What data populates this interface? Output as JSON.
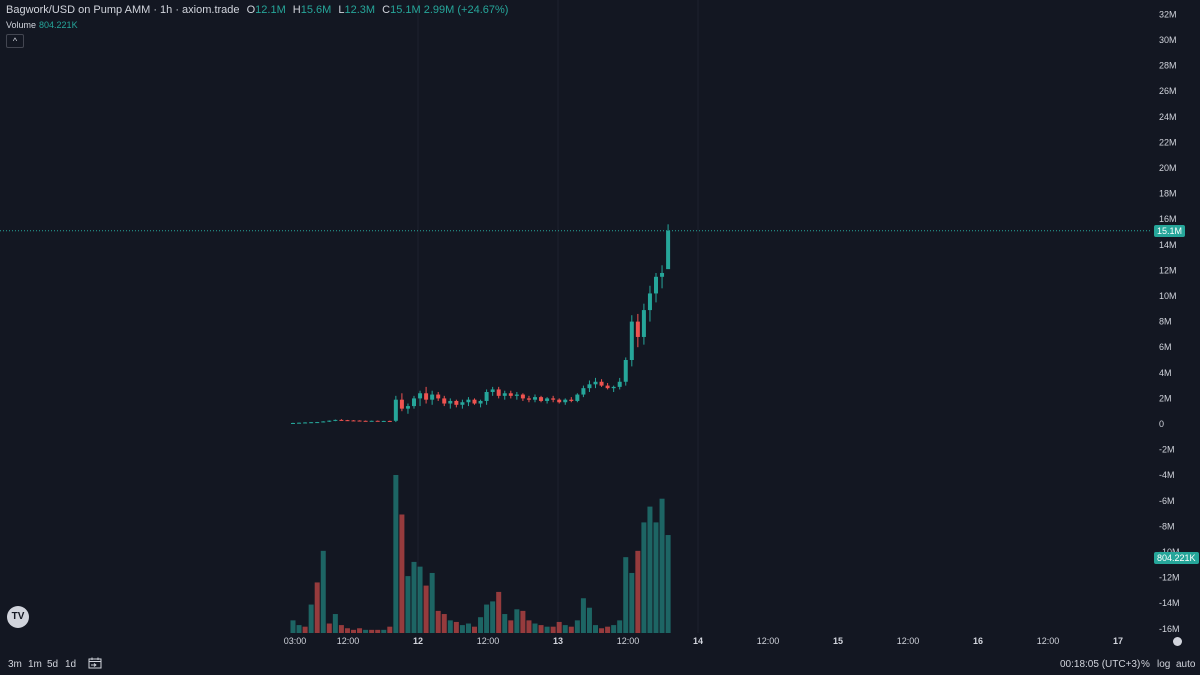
{
  "legend": {
    "symbol": "Bagwork/USD on Pump AMM · 1h · axiom.trade",
    "o_label": "O",
    "o_value": "12.1M",
    "h_label": "H",
    "h_value": "15.6M",
    "l_label": "L",
    "l_value": "12.3M",
    "c_label": "C",
    "c_value": "15.1M",
    "change": "2.99M (+24.67%)"
  },
  "volume_legend": {
    "label": "Volume",
    "value": "804.221K"
  },
  "collapse_glyph": "^",
  "logo_text": "TV",
  "price_badge": "15.1M",
  "volume_badge": "804.221K",
  "bottom_bar": {
    "timeframes": [
      "3m",
      "1m",
      "5d",
      "1d"
    ],
    "clock": "00:18:05 (UTC+3)",
    "percent": "%",
    "log": "log",
    "auto": "auto"
  },
  "colors": {
    "up": "#26a69a",
    "down": "#ef5350",
    "background": "#131722",
    "text": "#d1d4dc"
  },
  "chart_data": {
    "type": "candlestick",
    "y_ticks": [
      "32M",
      "30M",
      "28M",
      "26M",
      "24M",
      "22M",
      "20M",
      "18M",
      "16M",
      "14M",
      "12M",
      "10M",
      "8M",
      "6M",
      "4M",
      "2M",
      "0",
      "-2M",
      "-4M",
      "-6M",
      "-8M",
      "-10M",
      "-12M",
      "-14M",
      "-16M"
    ],
    "ylim": [
      -16,
      32
    ],
    "y_unit": "M",
    "x_ticks": [
      "03:00",
      "12:00",
      "12",
      "12:00",
      "13",
      "12:00",
      "14",
      "12:00",
      "15",
      "12:00",
      "16",
      "12:00",
      "17"
    ],
    "x_ticks_bold": [
      false,
      false,
      true,
      false,
      true,
      false,
      true,
      false,
      true,
      false,
      true,
      false,
      true
    ],
    "x_start_hour": 0,
    "candles": [
      [
        0.05,
        0.1,
        0.0,
        0.08
      ],
      [
        0.08,
        0.12,
        0.04,
        0.1
      ],
      [
        0.1,
        0.14,
        0.06,
        0.12
      ],
      [
        0.12,
        0.15,
        0.1,
        0.14
      ],
      [
        0.14,
        0.16,
        0.12,
        0.15
      ],
      [
        0.15,
        0.22,
        0.12,
        0.2
      ],
      [
        0.2,
        0.28,
        0.16,
        0.26
      ],
      [
        0.26,
        0.35,
        0.22,
        0.32
      ],
      [
        0.32,
        0.38,
        0.28,
        0.3
      ],
      [
        0.3,
        0.32,
        0.26,
        0.28
      ],
      [
        0.28,
        0.3,
        0.24,
        0.27
      ],
      [
        0.27,
        0.29,
        0.22,
        0.25
      ],
      [
        0.25,
        0.27,
        0.2,
        0.24
      ],
      [
        0.24,
        0.26,
        0.22,
        0.25
      ],
      [
        0.25,
        0.27,
        0.2,
        0.23
      ],
      [
        0.23,
        0.25,
        0.2,
        0.24
      ],
      [
        0.24,
        0.26,
        0.22,
        0.23
      ],
      [
        0.25,
        2.2,
        0.15,
        1.9
      ],
      [
        1.9,
        2.4,
        1.0,
        1.2
      ],
      [
        1.2,
        1.6,
        0.8,
        1.4
      ],
      [
        1.4,
        2.2,
        1.2,
        2.0
      ],
      [
        2.0,
        2.6,
        1.4,
        2.4
      ],
      [
        2.4,
        2.9,
        1.6,
        1.9
      ],
      [
        1.9,
        2.6,
        1.5,
        2.3
      ],
      [
        2.3,
        2.5,
        1.8,
        2.0
      ],
      [
        2.0,
        2.2,
        1.4,
        1.6
      ],
      [
        1.6,
        2.0,
        1.2,
        1.8
      ],
      [
        1.8,
        1.9,
        1.3,
        1.5
      ],
      [
        1.5,
        1.9,
        1.2,
        1.7
      ],
      [
        1.7,
        2.1,
        1.4,
        1.9
      ],
      [
        1.9,
        2.0,
        1.5,
        1.6
      ],
      [
        1.6,
        1.9,
        1.3,
        1.8
      ],
      [
        1.8,
        2.7,
        1.5,
        2.5
      ],
      [
        2.5,
        2.9,
        2.2,
        2.7
      ],
      [
        2.7,
        2.9,
        2.0,
        2.2
      ],
      [
        2.2,
        2.6,
        1.9,
        2.4
      ],
      [
        2.4,
        2.6,
        2.0,
        2.2
      ],
      [
        2.2,
        2.5,
        1.9,
        2.3
      ],
      [
        2.3,
        2.4,
        1.8,
        2.0
      ],
      [
        2.0,
        2.2,
        1.7,
        1.9
      ],
      [
        1.9,
        2.3,
        1.7,
        2.1
      ],
      [
        2.1,
        2.2,
        1.7,
        1.8
      ],
      [
        1.8,
        2.1,
        1.6,
        2.0
      ],
      [
        2.0,
        2.2,
        1.7,
        1.9
      ],
      [
        1.9,
        2.0,
        1.6,
        1.7
      ],
      [
        1.7,
        2.0,
        1.5,
        1.9
      ],
      [
        1.9,
        2.1,
        1.7,
        1.8
      ],
      [
        1.8,
        2.4,
        1.7,
        2.3
      ],
      [
        2.3,
        3.0,
        2.1,
        2.8
      ],
      [
        2.8,
        3.4,
        2.5,
        3.1
      ],
      [
        3.1,
        3.6,
        2.8,
        3.3
      ],
      [
        3.3,
        3.5,
        2.9,
        3.0
      ],
      [
        3.0,
        3.2,
        2.7,
        2.8
      ],
      [
        2.8,
        3.0,
        2.5,
        2.9
      ],
      [
        2.9,
        3.6,
        2.7,
        3.3
      ],
      [
        3.3,
        5.2,
        3.0,
        5.0
      ],
      [
        5.0,
        8.5,
        4.5,
        8.0
      ],
      [
        8.0,
        8.6,
        6.0,
        6.8
      ],
      [
        6.8,
        9.4,
        6.2,
        8.9
      ],
      [
        8.9,
        10.8,
        8.0,
        10.2
      ],
      [
        10.2,
        11.8,
        9.5,
        11.5
      ],
      [
        11.5,
        12.4,
        10.6,
        11.8
      ],
      [
        12.1,
        15.6,
        12.3,
        15.1
      ]
    ],
    "volumes": [
      0.08,
      0.05,
      0.04,
      0.18,
      0.32,
      0.52,
      0.06,
      0.12,
      0.05,
      0.03,
      0.02,
      0.03,
      0.02,
      0.02,
      0.02,
      0.02,
      0.04,
      1.0,
      0.75,
      0.36,
      0.45,
      0.42,
      0.3,
      0.38,
      0.14,
      0.12,
      0.08,
      0.07,
      0.05,
      0.06,
      0.04,
      0.1,
      0.18,
      0.2,
      0.26,
      0.12,
      0.08,
      0.15,
      0.14,
      0.08,
      0.06,
      0.05,
      0.04,
      0.04,
      0.07,
      0.05,
      0.04,
      0.08,
      0.22,
      0.16,
      0.05,
      0.03,
      0.04,
      0.05,
      0.08,
      0.48,
      0.38,
      0.52,
      0.7,
      0.8,
      0.7,
      0.85,
      0.62
    ],
    "volume_directions": [
      "up",
      "up",
      "down",
      "up",
      "down",
      "up",
      "down",
      "up",
      "down",
      "down",
      "down",
      "down",
      "up",
      "down",
      "down",
      "up",
      "down",
      "up",
      "down",
      "up",
      "up",
      "up",
      "down",
      "up",
      "down",
      "down",
      "up",
      "down",
      "up",
      "up",
      "down",
      "up",
      "up",
      "up",
      "down",
      "up",
      "down",
      "up",
      "down",
      "down",
      "up",
      "down",
      "up",
      "down",
      "down",
      "up",
      "down",
      "up",
      "up",
      "up",
      "up",
      "down",
      "down",
      "up",
      "up",
      "up",
      "up",
      "down",
      "up",
      "up",
      "up",
      "up",
      "up"
    ]
  }
}
